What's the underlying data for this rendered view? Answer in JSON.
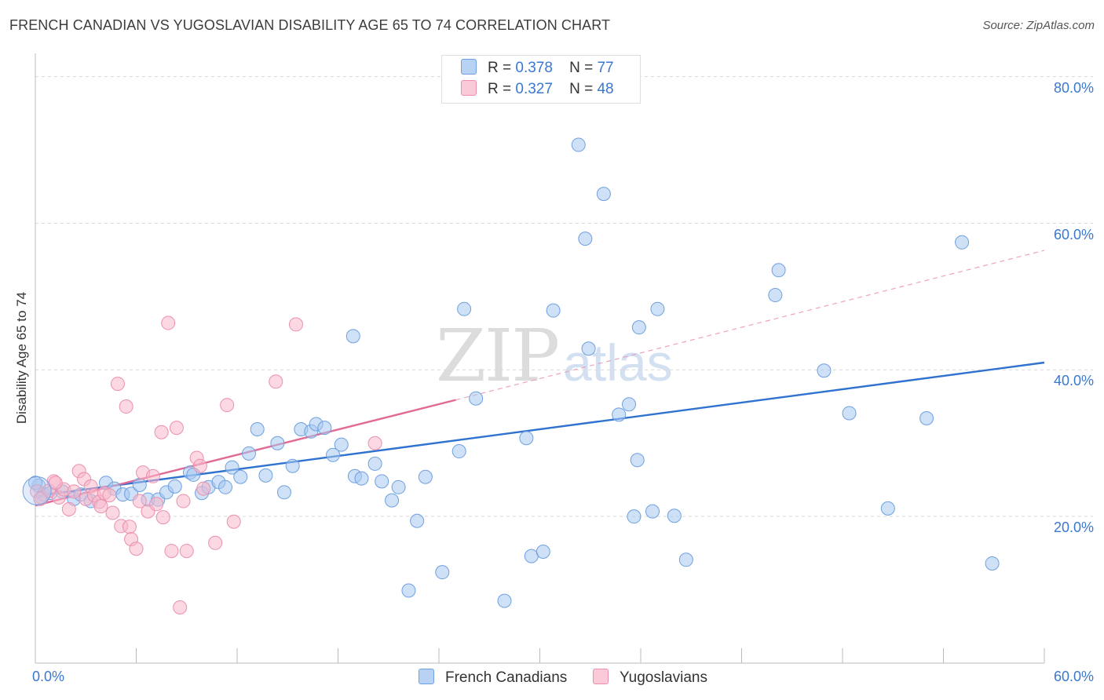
{
  "title": "FRENCH CANADIAN VS YUGOSLAVIAN DISABILITY AGE 65 TO 74 CORRELATION CHART",
  "source": "Source: ZipAtlas.com",
  "watermark": {
    "zip": "ZIP",
    "atlas": "atlas"
  },
  "legend": {
    "rows": [
      {
        "r_label": "R =",
        "r_value": "0.378",
        "n_label": "N =",
        "n_value": "77",
        "color": "#a8c8f0"
      },
      {
        "r_label": "R =",
        "r_value": "0.327",
        "n_label": "N =",
        "n_value": "48",
        "color": "#f7b8cb"
      }
    ]
  },
  "bottom_legend": [
    "French Canadians",
    "Yugoslavians"
  ],
  "chart_data": {
    "type": "scatter",
    "title": "FRENCH CANADIAN VS YUGOSLAVIAN DISABILITY AGE 65 TO 74 CORRELATION CHART",
    "xlabel": "",
    "ylabel": "Disability Age 65 to 74",
    "xlim": [
      0,
      60
    ],
    "ylim": [
      0,
      82
    ],
    "x_tick_labels": [
      "0.0%",
      "60.0%"
    ],
    "y_tick_labels": [
      "20.0%",
      "40.0%",
      "60.0%",
      "80.0%"
    ],
    "y_ticks": [
      20,
      40,
      60,
      80
    ],
    "grid": true,
    "legend_position": "top-center",
    "series": [
      {
        "name": "French Canadians",
        "color": "#6fa0e0",
        "fill": "#a8c8f0",
        "trend": {
          "x": [
            0,
            60
          ],
          "y": [
            22.8,
            41.0
          ],
          "color": "#2f72d0"
        },
        "points": [
          [
            0.2,
            24.2
          ],
          [
            0.5,
            23.0
          ],
          [
            0.9,
            23.2
          ],
          [
            1.6,
            23.4
          ],
          [
            2.3,
            22.4
          ],
          [
            2.7,
            23.0
          ],
          [
            3.3,
            22.1
          ],
          [
            4.2,
            24.6
          ],
          [
            4.7,
            23.8
          ],
          [
            5.2,
            23.0
          ],
          [
            5.7,
            23.1
          ],
          [
            6.2,
            24.3
          ],
          [
            6.7,
            22.3
          ],
          [
            7.3,
            22.3
          ],
          [
            7.8,
            23.3
          ],
          [
            8.3,
            24.1
          ],
          [
            9.2,
            26.0
          ],
          [
            9.4,
            25.7
          ],
          [
            9.9,
            23.2
          ],
          [
            10.3,
            24.0
          ],
          [
            10.9,
            24.7
          ],
          [
            11.3,
            24.0
          ],
          [
            11.7,
            26.7
          ],
          [
            12.2,
            25.4
          ],
          [
            12.7,
            28.6
          ],
          [
            13.2,
            31.9
          ],
          [
            13.7,
            25.6
          ],
          [
            14.4,
            30.0
          ],
          [
            14.8,
            23.3
          ],
          [
            15.3,
            26.9
          ],
          [
            15.8,
            31.9
          ],
          [
            16.4,
            31.6
          ],
          [
            16.7,
            32.6
          ],
          [
            17.2,
            32.1
          ],
          [
            17.7,
            28.4
          ],
          [
            18.2,
            29.8
          ],
          [
            18.9,
            44.6
          ],
          [
            19.0,
            25.5
          ],
          [
            19.4,
            25.2
          ],
          [
            20.2,
            27.2
          ],
          [
            20.6,
            24.8
          ],
          [
            21.2,
            22.2
          ],
          [
            21.6,
            24.0
          ],
          [
            22.7,
            19.4
          ],
          [
            23.2,
            25.4
          ],
          [
            22.2,
            9.9
          ],
          [
            24.2,
            12.4
          ],
          [
            25.2,
            28.9
          ],
          [
            25.5,
            48.3
          ],
          [
            26.2,
            36.1
          ],
          [
            27.9,
            8.5
          ],
          [
            29.2,
            30.7
          ],
          [
            29.5,
            14.6
          ],
          [
            30.2,
            15.2
          ],
          [
            30.8,
            48.1
          ],
          [
            32.3,
            70.7
          ],
          [
            32.7,
            57.9
          ],
          [
            32.9,
            42.9
          ],
          [
            33.8,
            64.0
          ],
          [
            34.7,
            33.9
          ],
          [
            35.3,
            35.3
          ],
          [
            35.6,
            20.0
          ],
          [
            35.8,
            27.7
          ],
          [
            35.9,
            45.8
          ],
          [
            36.7,
            20.7
          ],
          [
            37.0,
            48.3
          ],
          [
            38.0,
            20.1
          ],
          [
            38.7,
            14.1
          ],
          [
            44.0,
            50.2
          ],
          [
            44.2,
            53.6
          ],
          [
            46.9,
            39.9
          ],
          [
            48.4,
            34.1
          ],
          [
            50.7,
            21.1
          ],
          [
            53.0,
            33.4
          ],
          [
            55.1,
            57.4
          ],
          [
            56.9,
            13.6
          ],
          [
            0.0,
            24.6
          ]
        ]
      },
      {
        "name": "Yugoslavians",
        "color": "#ec8fae",
        "fill": "#f7b8cb",
        "trend": {
          "x": [
            0,
            25
          ],
          "y": [
            21.5,
            35.9
          ],
          "x_dash_end": 60,
          "y_dash_end": 56.3,
          "color": "#e06a95"
        },
        "points": [
          [
            0.1,
            23.4
          ],
          [
            0.4,
            22.6
          ],
          [
            0.8,
            23.5
          ],
          [
            1.1,
            24.8
          ],
          [
            1.4,
            22.6
          ],
          [
            1.7,
            23.7
          ],
          [
            2.0,
            21.0
          ],
          [
            2.3,
            23.4
          ],
          [
            2.6,
            26.2
          ],
          [
            2.9,
            25.1
          ],
          [
            3.0,
            22.4
          ],
          [
            3.3,
            24.1
          ],
          [
            3.5,
            22.9
          ],
          [
            3.8,
            22.0
          ],
          [
            3.9,
            21.4
          ],
          [
            4.1,
            23.2
          ],
          [
            4.4,
            22.9
          ],
          [
            4.6,
            20.5
          ],
          [
            4.9,
            38.1
          ],
          [
            5.1,
            18.7
          ],
          [
            5.4,
            35.0
          ],
          [
            5.6,
            18.6
          ],
          [
            5.7,
            16.9
          ],
          [
            6.0,
            15.6
          ],
          [
            6.2,
            22.1
          ],
          [
            6.4,
            26.0
          ],
          [
            6.7,
            20.7
          ],
          [
            7.0,
            25.5
          ],
          [
            7.2,
            21.7
          ],
          [
            7.5,
            31.5
          ],
          [
            7.6,
            19.9
          ],
          [
            7.9,
            46.4
          ],
          [
            8.1,
            15.3
          ],
          [
            8.4,
            32.1
          ],
          [
            8.6,
            7.6
          ],
          [
            8.8,
            22.1
          ],
          [
            9.0,
            15.3
          ],
          [
            9.6,
            28.0
          ],
          [
            9.8,
            26.9
          ],
          [
            10.0,
            23.8
          ],
          [
            10.7,
            16.4
          ],
          [
            11.4,
            35.2
          ],
          [
            11.8,
            19.3
          ],
          [
            14.3,
            38.4
          ],
          [
            15.5,
            46.2
          ],
          [
            20.2,
            30.0
          ],
          [
            0.3,
            22.4
          ],
          [
            1.2,
            24.6
          ]
        ]
      }
    ]
  }
}
